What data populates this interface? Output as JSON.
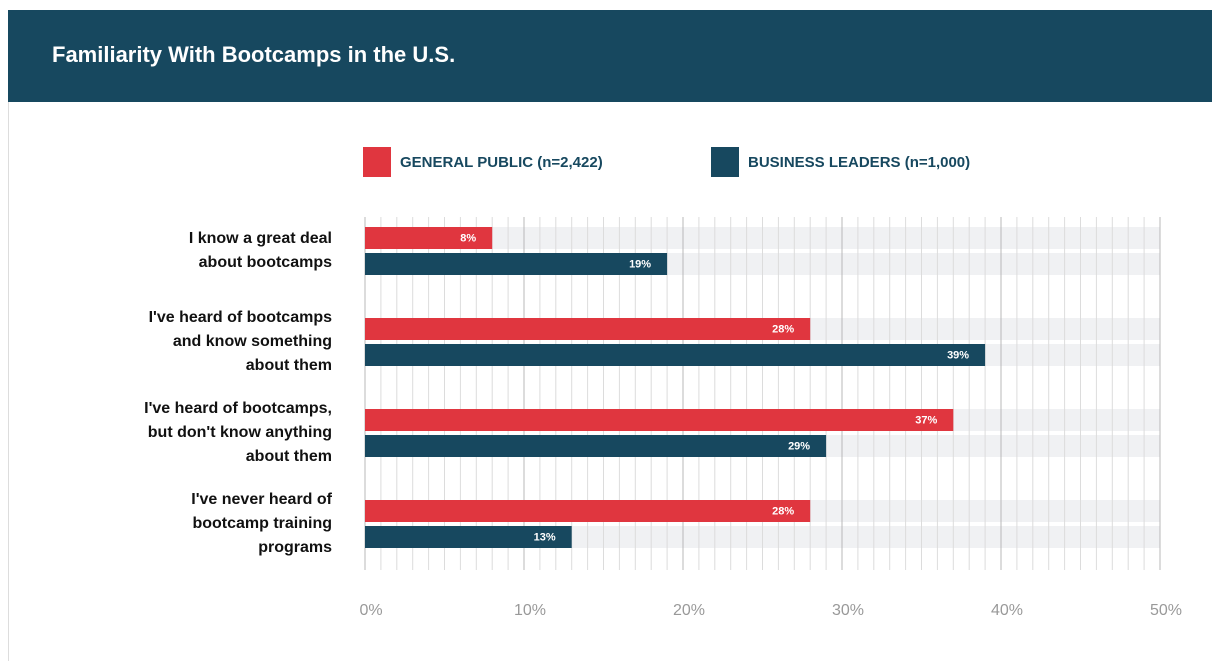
{
  "chart_data": {
    "type": "bar",
    "orientation": "horizontal",
    "title": "Familiarity With Bootcamps in the U.S.",
    "categories": [
      "I know a great deal\nabout bootcamps",
      "I've heard of bootcamps\nand know something\nabout them",
      "I've heard of bootcamps,\nbut don't know anything\nabout them",
      "I've never heard of\nbootcamp training\nprograms"
    ],
    "series": [
      {
        "name": "GENERAL PUBLIC (n=2,422)",
        "color": "#e0363f",
        "values": [
          8,
          28,
          37,
          28
        ],
        "value_labels": [
          "8%",
          "28%",
          "37%",
          "28%"
        ]
      },
      {
        "name": "BUSINESS LEADERS (n=1,000)",
        "color": "#17485f",
        "values": [
          19,
          39,
          29,
          13
        ],
        "value_labels": [
          "19%",
          "39%",
          "29%",
          "13%"
        ]
      }
    ],
    "xlim": [
      0,
      50
    ],
    "xticks": [
      {
        "value": 0,
        "label": "0%"
      },
      {
        "value": 10,
        "label": "10%"
      },
      {
        "value": 20,
        "label": "20%"
      },
      {
        "value": 30,
        "label": "30%"
      },
      {
        "value": 40,
        "label": "40%"
      },
      {
        "value": 50,
        "label": "50%"
      }
    ],
    "grid": true,
    "legend": "top"
  }
}
